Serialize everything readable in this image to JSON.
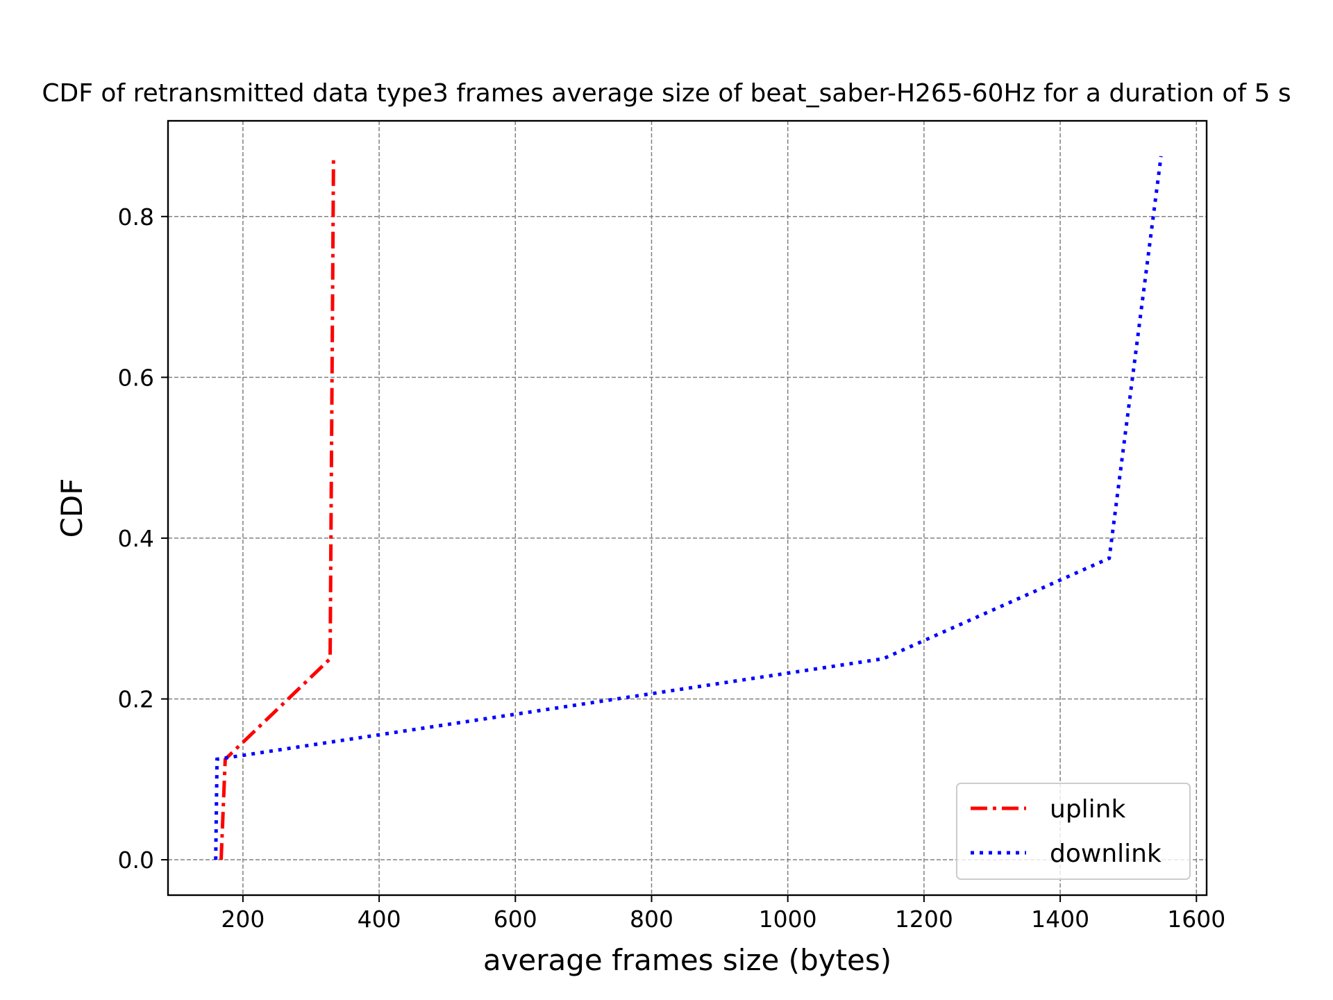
{
  "chart_data": {
    "type": "line",
    "title": "CDF of retransmitted data type3 frames average size of beat_saber-H265-60Hz for a duration of 5 s",
    "xlabel": "average frames size (bytes)",
    "ylabel": "CDF",
    "xlim": [
      90,
      1615
    ],
    "ylim": [
      -0.044,
      0.919
    ],
    "xticks": [
      200,
      400,
      600,
      800,
      1000,
      1200,
      1400,
      1600
    ],
    "yticks": [
      0.0,
      0.2,
      0.4,
      0.6,
      0.8
    ],
    "xtick_labels": [
      "200",
      "400",
      "600",
      "800",
      "1000",
      "1200",
      "1400",
      "1600"
    ],
    "ytick_labels": [
      "0.0",
      "0.2",
      "0.4",
      "0.6",
      "0.8"
    ],
    "grid": true,
    "legend_position": "lower right",
    "series": [
      {
        "name": "uplink",
        "color": "#ff0000",
        "linestyle": "dashdot",
        "x": [
          168,
          174,
          328,
          333
        ],
        "y": [
          0.0,
          0.125,
          0.25,
          0.875
        ]
      },
      {
        "name": "downlink",
        "color": "#0000ff",
        "linestyle": "dotted",
        "x": [
          160,
          162,
          1140,
          1472,
          1548
        ],
        "y": [
          0.0,
          0.125,
          0.25,
          0.375,
          0.875
        ]
      }
    ]
  }
}
